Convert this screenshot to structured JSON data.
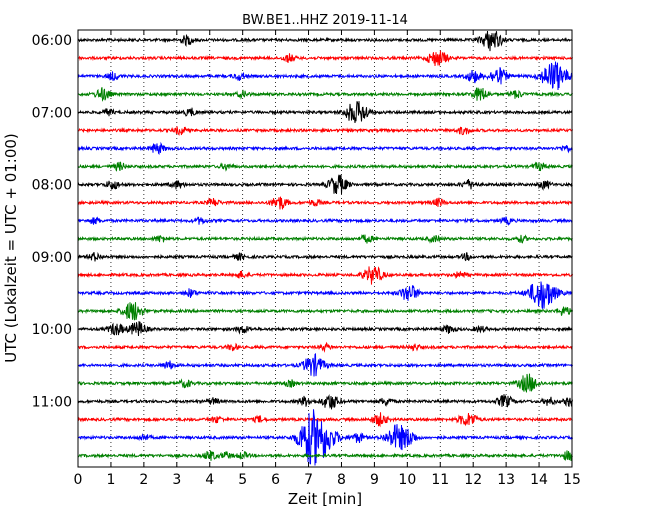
{
  "chart_data": {
    "type": "line",
    "subtype": "dayplot-seismogram",
    "title": "BW.BE1..HHZ 2019-11-14",
    "xlabel": "Zeit  [min]",
    "ylabel": "UTC (Lokalzeit = UTC + 01:00)",
    "xlim": [
      0,
      15
    ],
    "x_ticks": [
      "0",
      "1",
      "2",
      "3",
      "4",
      "5",
      "6",
      "7",
      "8",
      "9",
      "10",
      "11",
      "12",
      "13",
      "14",
      "15"
    ],
    "y_tick_labels": [
      "06:00",
      "07:00",
      "08:00",
      "09:00",
      "10:00",
      "11:00"
    ],
    "grid": "vertical dotted",
    "color_cycle": [
      "#000000",
      "#ff0000",
      "#0000ff",
      "#008000"
    ],
    "rows": [
      {
        "start": "06:00",
        "events": [
          [
            3.3,
            0.6
          ],
          [
            12.55,
            1.4
          ]
        ]
      },
      {
        "start": "06:15",
        "events": [
          [
            6.4,
            0.5
          ],
          [
            10.8,
            0.8
          ],
          [
            11.05,
            0.6
          ]
        ]
      },
      {
        "start": "06:30",
        "events": [
          [
            1.05,
            0.5
          ],
          [
            4.9,
            0.5
          ],
          [
            12.0,
            0.8
          ],
          [
            12.75,
            1.1
          ],
          [
            14.45,
            2.0
          ]
        ]
      },
      {
        "start": "06:45",
        "events": [
          [
            0.75,
            0.8
          ],
          [
            5.0,
            0.4
          ],
          [
            12.2,
            0.9
          ],
          [
            13.3,
            0.5
          ]
        ]
      },
      {
        "start": "07:00",
        "events": [
          [
            0.9,
            0.4
          ],
          [
            3.4,
            0.5
          ],
          [
            8.35,
            1.2
          ],
          [
            8.65,
            0.8
          ]
        ]
      },
      {
        "start": "07:15",
        "events": [
          [
            3.1,
            0.5
          ],
          [
            11.7,
            0.5
          ]
        ]
      },
      {
        "start": "07:30",
        "events": [
          [
            2.4,
            0.7
          ],
          [
            14.8,
            0.4
          ]
        ]
      },
      {
        "start": "07:45",
        "events": [
          [
            1.25,
            0.5
          ],
          [
            4.5,
            0.4
          ],
          [
            14.0,
            0.5
          ]
        ]
      },
      {
        "start": "08:00",
        "events": [
          [
            1.05,
            0.6
          ],
          [
            3.0,
            0.5
          ],
          [
            7.8,
            0.9
          ],
          [
            8.0,
            0.7
          ],
          [
            11.85,
            0.6
          ],
          [
            14.15,
            0.5
          ]
        ]
      },
      {
        "start": "08:15",
        "events": [
          [
            4.1,
            0.5
          ],
          [
            6.1,
            0.9
          ],
          [
            7.2,
            0.4
          ],
          [
            10.95,
            0.5
          ]
        ]
      },
      {
        "start": "08:30",
        "events": [
          [
            0.5,
            0.4
          ],
          [
            3.7,
            0.4
          ],
          [
            13.0,
            0.4
          ]
        ]
      },
      {
        "start": "08:45",
        "events": [
          [
            2.5,
            0.4
          ],
          [
            8.75,
            0.5
          ],
          [
            10.8,
            0.4
          ],
          [
            13.45,
            0.4
          ]
        ]
      },
      {
        "start": "09:00",
        "events": [
          [
            0.5,
            0.5
          ],
          [
            4.9,
            0.4
          ],
          [
            11.8,
            0.4
          ]
        ]
      },
      {
        "start": "09:15",
        "events": [
          [
            4.95,
            0.4
          ],
          [
            8.95,
            1.2
          ],
          [
            11.6,
            0.4
          ]
        ]
      },
      {
        "start": "09:30",
        "events": [
          [
            3.4,
            0.5
          ],
          [
            10.05,
            1.1
          ],
          [
            14.1,
            2.1
          ]
        ]
      },
      {
        "start": "09:45",
        "events": [
          [
            1.65,
            1.3
          ],
          [
            14.75,
            0.6
          ]
        ]
      },
      {
        "start": "10:00",
        "events": [
          [
            1.15,
            0.8
          ],
          [
            1.8,
            1.0
          ],
          [
            5.0,
            0.5
          ],
          [
            11.25,
            0.5
          ],
          [
            12.2,
            0.4
          ]
        ]
      },
      {
        "start": "10:15",
        "events": [
          [
            4.7,
            0.4
          ],
          [
            7.5,
            0.4
          ],
          [
            10.2,
            0.4
          ]
        ]
      },
      {
        "start": "10:30",
        "events": [
          [
            2.75,
            0.5
          ],
          [
            7.15,
            1.4
          ]
        ]
      },
      {
        "start": "10:45",
        "events": [
          [
            3.25,
            0.5
          ],
          [
            6.45,
            0.4
          ],
          [
            13.65,
            1.2
          ]
        ]
      },
      {
        "start": "11:00",
        "events": [
          [
            4.1,
            0.4
          ],
          [
            6.9,
            0.6
          ],
          [
            7.65,
            1.0
          ],
          [
            9.35,
            0.5
          ],
          [
            12.95,
            0.8
          ],
          [
            14.3,
            0.5
          ],
          [
            14.95,
            0.6
          ]
        ]
      },
      {
        "start": "11:15",
        "events": [
          [
            4.2,
            0.4
          ],
          [
            5.5,
            0.4
          ],
          [
            9.15,
            0.8
          ],
          [
            11.75,
            0.7
          ],
          [
            12.0,
            0.5
          ]
        ]
      },
      {
        "start": "11:30",
        "events": [
          [
            2.0,
            0.4
          ],
          [
            7.0,
            1.6
          ],
          [
            7.3,
            2.7
          ],
          [
            8.5,
            0.6
          ],
          [
            9.7,
            1.7
          ],
          [
            10.1,
            0.6
          ]
        ]
      },
      {
        "start": "11:45",
        "events": [
          [
            4.0,
            0.6
          ],
          [
            4.5,
            0.4
          ],
          [
            5.0,
            0.4
          ],
          [
            14.9,
            0.6
          ]
        ]
      }
    ]
  }
}
